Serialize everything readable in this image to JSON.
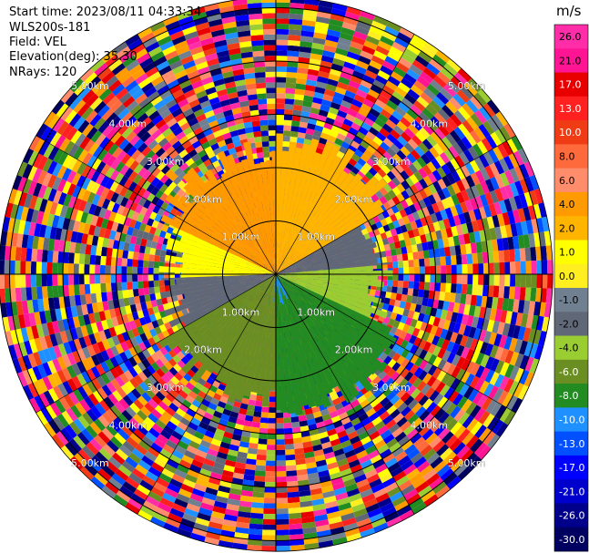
{
  "meta": {
    "start_time": "Start time: 2023/08/11 04:33:34",
    "instrument": "WLS200s-181",
    "field": "Field: VEL",
    "elevation": "Elevation(deg): 35.30",
    "nrays": "NRays: 120"
  },
  "chart_data": {
    "type": "heatmap",
    "projection": "polar-ppi",
    "field": "VEL",
    "units": "m/s",
    "n_rays": 120,
    "range_rings_km": [
      1,
      2,
      3,
      4,
      5
    ],
    "max_range_km": 5.2,
    "ring_labels": {
      "r1": "1.00km",
      "r2": "2.00km",
      "r3": "3.00km",
      "r4": "4.00km",
      "r5": "5.00km"
    },
    "colorbar": {
      "unit": "m/s",
      "ticks": [
        "26.0",
        "21.0",
        "17.0",
        "13.0",
        "10.0",
        "8.0",
        "6.0",
        "4.0",
        "2.0",
        "1.0",
        "0.0",
        "-1.0",
        "-2.0",
        "-4.0",
        "-6.0",
        "-8.0",
        "-10.0",
        "-13.0",
        "-17.0",
        "-21.0",
        "-26.0",
        "-30.0"
      ],
      "segments": [
        {
          "from": 26,
          "to": 30,
          "color": "#ff2ea8"
        },
        {
          "from": 21,
          "to": 26,
          "color": "#ff1493"
        },
        {
          "from": 17,
          "to": 21,
          "color": "#e80000"
        },
        {
          "from": 13,
          "to": 17,
          "color": "#ff2020"
        },
        {
          "from": 10,
          "to": 13,
          "color": "#f03c14"
        },
        {
          "from": 8,
          "to": 10,
          "color": "#ff6a3c"
        },
        {
          "from": 6,
          "to": 8,
          "color": "#ff8c6a"
        },
        {
          "from": 4,
          "to": 6,
          "color": "#ff9a00"
        },
        {
          "from": 2,
          "to": 4,
          "color": "#ffb400"
        },
        {
          "from": 1,
          "to": 2,
          "color": "#ffff00"
        },
        {
          "from": 0,
          "to": 1,
          "color": "#ffee20"
        },
        {
          "from": -1,
          "to": 0,
          "color": "#708090"
        },
        {
          "from": -2,
          "to": -1,
          "color": "#606878"
        },
        {
          "from": -4,
          "to": -2,
          "color": "#9acd32"
        },
        {
          "from": -6,
          "to": -4,
          "color": "#6b8e23"
        },
        {
          "from": -8,
          "to": -6,
          "color": "#228b22"
        },
        {
          "from": -10,
          "to": -8,
          "color": "#1e90ff"
        },
        {
          "from": -13,
          "to": -10,
          "color": "#0050ff"
        },
        {
          "from": -17,
          "to": -13,
          "color": "#0000ff"
        },
        {
          "from": -21,
          "to": -17,
          "color": "#0000cd"
        },
        {
          "from": -26,
          "to": -21,
          "color": "#00008b"
        },
        {
          "from": -30,
          "to": -26,
          "color": "#000060"
        }
      ]
    },
    "velocity_sectors": [
      {
        "az_from": 295,
        "az_to": 360,
        "range_km": [
          0.0,
          2.3
        ],
        "value": 4.5
      },
      {
        "az_from": 0,
        "az_to": 60,
        "range_km": [
          0.0,
          2.5
        ],
        "value": 2.5
      },
      {
        "az_from": 60,
        "az_to": 85,
        "range_km": [
          0.0,
          2.0
        ],
        "value": -1.5
      },
      {
        "az_from": 85,
        "az_to": 115,
        "range_km": [
          0.0,
          2.0
        ],
        "value": -3.0
      },
      {
        "az_from": 115,
        "az_to": 180,
        "range_km": [
          0.0,
          2.6
        ],
        "value": -7.0
      },
      {
        "az_from": 180,
        "az_to": 240,
        "range_km": [
          0.0,
          2.3
        ],
        "value": -5.0
      },
      {
        "az_from": 240,
        "az_to": 268,
        "range_km": [
          0.0,
          2.0
        ],
        "value": -1.5
      },
      {
        "az_from": 268,
        "az_to": 295,
        "range_km": [
          0.0,
          2.0
        ],
        "value": 1.5
      },
      {
        "az_from": 150,
        "az_to": 185,
        "range_km": [
          0.0,
          0.35
        ],
        "value": -9.0
      }
    ]
  }
}
